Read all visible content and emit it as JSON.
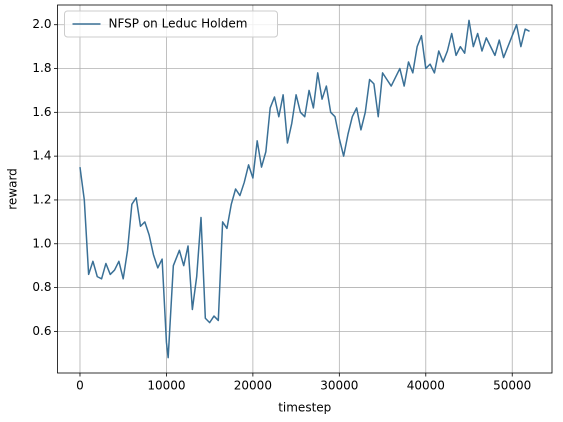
{
  "chart_data": {
    "type": "line",
    "xlabel": "timestep",
    "ylabel": "reward",
    "x": [
      0,
      500,
      1000,
      1500,
      2000,
      2500,
      3000,
      3500,
      4000,
      4500,
      5000,
      5500,
      6000,
      6500,
      7000,
      7500,
      8000,
      8500,
      9000,
      9500,
      10000,
      10200,
      10800,
      11500,
      12000,
      12500,
      13000,
      13500,
      14000,
      14500,
      15000,
      15500,
      16000,
      16500,
      17000,
      17500,
      18000,
      18500,
      19000,
      19500,
      20000,
      20500,
      21000,
      21500,
      22000,
      22500,
      23000,
      23500,
      24000,
      24500,
      25000,
      25500,
      26000,
      26500,
      27000,
      27500,
      28000,
      28500,
      29000,
      29500,
      30000,
      30500,
      31000,
      31500,
      32000,
      32500,
      33000,
      33500,
      34000,
      34500,
      35000,
      35500,
      36000,
      36500,
      37000,
      37500,
      38000,
      38500,
      39000,
      39500,
      40000,
      40500,
      41000,
      41500,
      42000,
      42500,
      43000,
      43500,
      44000,
      44500,
      45000,
      45500,
      46000,
      46500,
      47000,
      47500,
      48000,
      48500,
      49000,
      49500,
      50000,
      50500,
      51000,
      51500,
      52000
    ],
    "series": [
      {
        "name": "NFSP on Leduc Holdem",
        "color": "#3a7096",
        "values": [
          1.35,
          1.2,
          0.86,
          0.92,
          0.85,
          0.84,
          0.91,
          0.86,
          0.88,
          0.92,
          0.84,
          0.97,
          1.18,
          1.21,
          1.08,
          1.1,
          1.04,
          0.95,
          0.89,
          0.93,
          0.55,
          0.48,
          0.9,
          0.97,
          0.9,
          0.99,
          0.7,
          0.85,
          1.12,
          0.66,
          0.64,
          0.67,
          0.65,
          1.1,
          1.07,
          1.18,
          1.25,
          1.22,
          1.28,
          1.36,
          1.3,
          1.47,
          1.35,
          1.42,
          1.62,
          1.67,
          1.58,
          1.68,
          1.46,
          1.55,
          1.68,
          1.6,
          1.58,
          1.7,
          1.62,
          1.78,
          1.66,
          1.72,
          1.6,
          1.58,
          1.48,
          1.4,
          1.5,
          1.58,
          1.62,
          1.52,
          1.6,
          1.75,
          1.73,
          1.58,
          1.78,
          1.75,
          1.72,
          1.76,
          1.8,
          1.72,
          1.83,
          1.78,
          1.9,
          1.95,
          1.8,
          1.82,
          1.78,
          1.88,
          1.83,
          1.88,
          1.96,
          1.86,
          1.9,
          1.87,
          2.02,
          1.9,
          1.96,
          1.88,
          1.94,
          1.9,
          1.86,
          1.93,
          1.85,
          1.9,
          1.95,
          2.0,
          1.9,
          1.98,
          1.97
        ]
      }
    ],
    "xlim": [
      -2600,
      54600
    ],
    "xticks": [
      0,
      10000,
      20000,
      30000,
      40000,
      50000
    ],
    "ylim": [
      0.41,
      2.09
    ],
    "yticks": [
      0.6,
      0.8,
      {
        "value": 1.0,
        "label": "1.0"
      },
      1.2,
      1.4,
      1.6,
      1.8,
      {
        "value": 2.0,
        "label": "2.0"
      }
    ],
    "grid": true,
    "legend": "upper left"
  }
}
